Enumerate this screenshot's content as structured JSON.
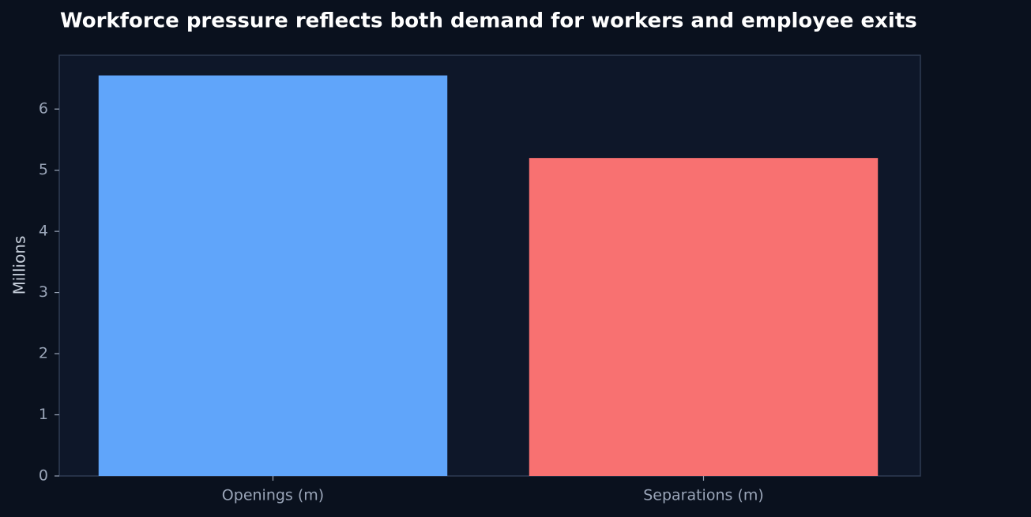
{
  "chart_data": {
    "type": "bar",
    "title": "Workforce pressure reflects both demand for workers and employee exits",
    "y_label": "Millions",
    "categories": [
      "Openings (m)",
      "Separations (m)"
    ],
    "values": [
      6.55,
      5.2
    ],
    "colors": [
      "#60a5fa",
      "#f87171"
    ],
    "ylim": [
      0,
      6.88
    ],
    "yticks": [
      0,
      1,
      2,
      3,
      4,
      5,
      6
    ],
    "grid": false
  }
}
